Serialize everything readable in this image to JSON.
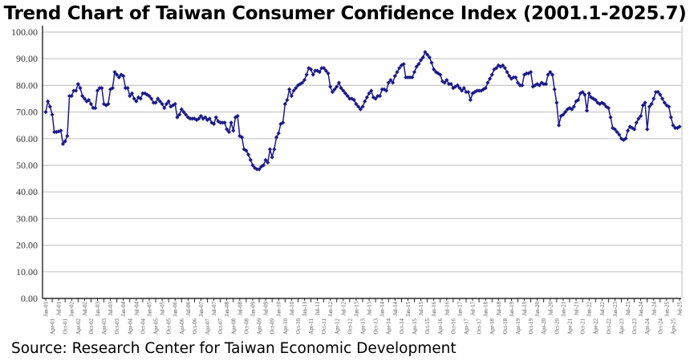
{
  "chart_data": {
    "type": "line",
    "title": "Trend Chart of Taiwan Consumer Confidence Index (2001.1-2025.7)",
    "source": "Source: Research Center for Taiwan Economic Development",
    "xlabel": "",
    "ylabel": "",
    "ylim": [
      0,
      100
    ],
    "yticks": [
      "0.00",
      "10.00",
      "20.00",
      "30.00",
      "40.00",
      "50.00",
      "60.00",
      "70.00",
      "80.00",
      "90.00",
      "100.00"
    ],
    "grid": true,
    "legend": "none",
    "series_color": "#1a1a8c",
    "x_start": "2001-01",
    "x_end": "2025-07",
    "x_interval": "monthly",
    "xtick_every_months": 3,
    "xtick_labels": [
      "Jan-01",
      "Apr-01",
      "Jul-01",
      "Oct-01",
      "Jan-02",
      "Apr-02",
      "Jul-02",
      "Oct-02",
      "Jan-03",
      "Apr-03",
      "Jul-03",
      "Oct-03",
      "Jan-04",
      "Apr-04",
      "Jul-04",
      "Oct-04",
      "Jan-05",
      "Apr-05",
      "Jul-05",
      "Oct-05",
      "Jan-06",
      "Apr-06",
      "Jul-06",
      "Oct-06",
      "Jan-07",
      "Apr-07",
      "Jul-07",
      "Oct-07",
      "Jan-08",
      "Apr-08",
      "Jul-08",
      "Oct-08",
      "Jan-09",
      "Apr-09",
      "Jul-09",
      "Oct-09",
      "Jan-10",
      "Apr-10",
      "Jul-10",
      "Oct-10",
      "Jan-11",
      "Apr-11",
      "Jul-11",
      "Oct-11",
      "Jan-12",
      "Apr-12",
      "Jul-12",
      "Oct-12",
      "Jan-13",
      "Apr-13",
      "Jul-13",
      "Oct-13",
      "Jan-14",
      "Apr-14",
      "Jul-14",
      "Oct-14",
      "Jan-15",
      "Apr-15",
      "Jul-15",
      "Oct-15",
      "Jan-16",
      "Apr-16",
      "Jul-16",
      "Oct-16",
      "Jan-17",
      "Apr-17",
      "Jul-17",
      "Oct-17",
      "Jan-18",
      "Apr-18",
      "Jul-18",
      "Oct-18",
      "Jan-19",
      "Apr-19",
      "Jul-19",
      "Oct-19",
      "Jan-20",
      "Apr-20",
      "Jul-20",
      "Oct-20",
      "Jan-21",
      "Apr-21",
      "Jul-21",
      "Oct-21",
      "Jan-22",
      "Apr-22",
      "Jul-22",
      "Oct-22",
      "Jan-23",
      "Apr-23",
      "Jul-23",
      "Oct-23",
      "Jan-24",
      "Apr-24",
      "Jul-24",
      "Oct-24",
      "Jan-25",
      "Apr-25",
      "Jul-25"
    ],
    "values": [
      70,
      74,
      72,
      69,
      62.5,
      62.5,
      62.7,
      63,
      58,
      59,
      61,
      76,
      76,
      78,
      78,
      80.5,
      79,
      76,
      75,
      74,
      74.5,
      73,
      71.5,
      71.5,
      78,
      79,
      79,
      73,
      72.5,
      73,
      78.5,
      79,
      85,
      84,
      83,
      84,
      83.5,
      79,
      79,
      76,
      77,
      75,
      74,
      75.5,
      75,
      77,
      77,
      76.5,
      76,
      75,
      73.5,
      73.5,
      75,
      74,
      73,
      71.5,
      73,
      74,
      72,
      72.5,
      73,
      68,
      69,
      71,
      70,
      69,
      68,
      67.5,
      67.5,
      67.5,
      67,
      67.5,
      68.5,
      67.5,
      68,
      67,
      67.5,
      66,
      65.5,
      68,
      66.5,
      66,
      66,
      66,
      63.5,
      62.5,
      66,
      63,
      68,
      68.5,
      61,
      60.5,
      56,
      55.5,
      54,
      52,
      50,
      49,
      48.5,
      48.5,
      49.5,
      50,
      52,
      51,
      56,
      53,
      56,
      60.5,
      62,
      65.5,
      66,
      73,
      74.5,
      78.5,
      76,
      78,
      79,
      80,
      80.5,
      81,
      82,
      84,
      86.5,
      86,
      84,
      85.5,
      85.5,
      85,
      86.5,
      86.5,
      85.5,
      84.5,
      79.5,
      77.5,
      78.5,
      79.5,
      81,
      79,
      78,
      77,
      76,
      75,
      75,
      74.5,
      73,
      72,
      71,
      72,
      74,
      75.5,
      77,
      78,
      75.5,
      75,
      76,
      76,
      78.5,
      78.5,
      78,
      81,
      82,
      81,
      83.5,
      85,
      86.5,
      87.5,
      88,
      83,
      83,
      83,
      83,
      85,
      87,
      88,
      89.5,
      90.5,
      92.5,
      91.5,
      90.5,
      88.5,
      86,
      85,
      84.5,
      84,
      81.5,
      81,
      82,
      80.5,
      80.5,
      79,
      79.5,
      80,
      79,
      78,
      79,
      77.5,
      77.5,
      74.5,
      77,
      77.5,
      78,
      78,
      78,
      78.5,
      79,
      81,
      82.5,
      84,
      86,
      86.5,
      87.5,
      87,
      87.5,
      86.5,
      85,
      83.5,
      82.5,
      83,
      83,
      81,
      80,
      80,
      84,
      84.5,
      84.5,
      85,
      79.5,
      80,
      80.5,
      80,
      81,
      80.5,
      80.5,
      84,
      85,
      84,
      78.5,
      73.5,
      65,
      68.5,
      69,
      70,
      71,
      71.5,
      71,
      72,
      74,
      74.5,
      77,
      77.5,
      76.5,
      70.5,
      77,
      75.5,
      75,
      74.5,
      73.5,
      73,
      73.5,
      73,
      72,
      71.5,
      68,
      64,
      63.5,
      62.5,
      61.5,
      60,
      59.5,
      60,
      63,
      64.5,
      64,
      63.5,
      66,
      67.5,
      68.5,
      72.5,
      73.5,
      63.5,
      72,
      73,
      75,
      77.5,
      77.5,
      76.5,
      75,
      73.5,
      72.5,
      72,
      68,
      65,
      64,
      64,
      64.5
    ]
  }
}
